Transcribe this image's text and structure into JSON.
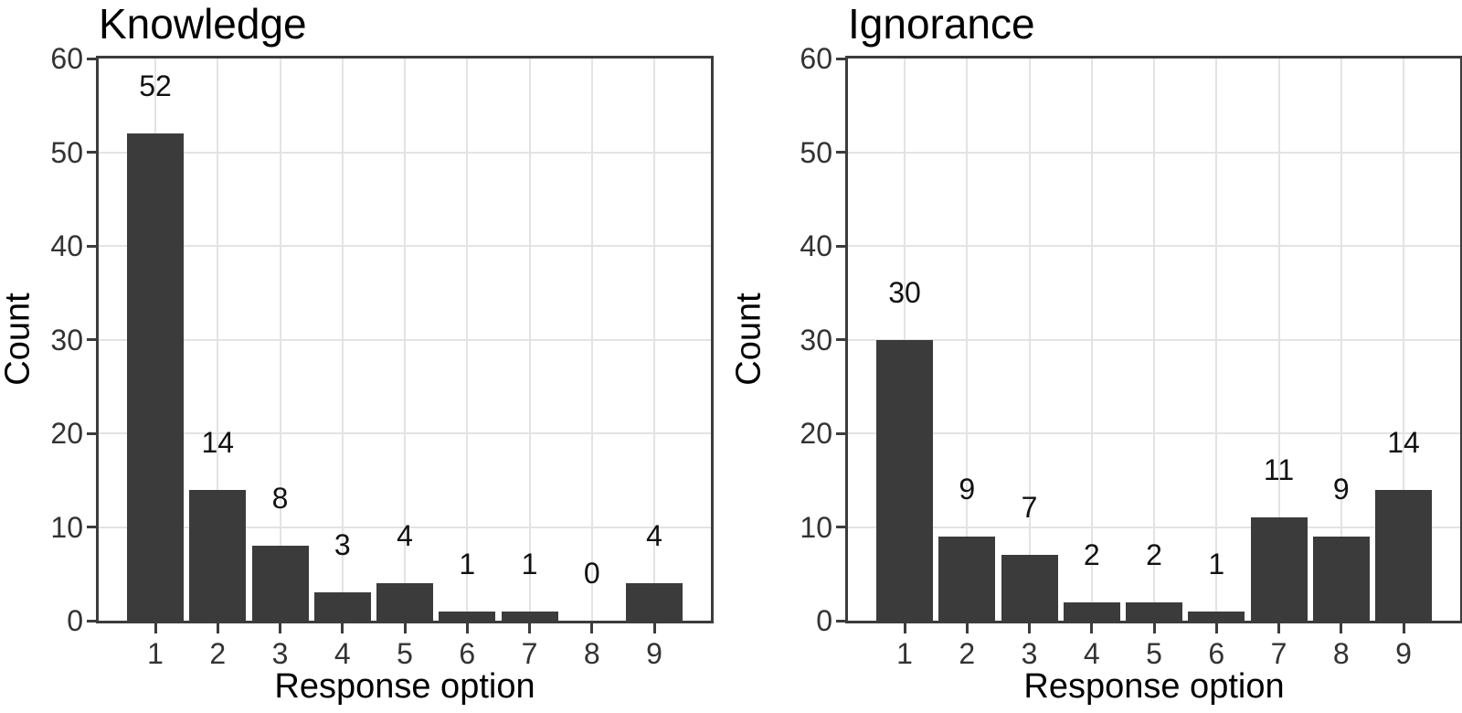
{
  "figure": {
    "background": "#ffffff",
    "panel_count": 2
  },
  "style": {
    "bar_color": "#3b3b3b",
    "panel_border_color": "#3c3c3c",
    "grid_color": "#e3e3e3",
    "tick_text_color": "#333333",
    "title_text_color": "#000000"
  },
  "chart_data": [
    {
      "type": "bar",
      "title": "Knowledge",
      "xlabel": "Response option",
      "ylabel": "Count",
      "categories": [
        "1",
        "2",
        "3",
        "4",
        "5",
        "6",
        "7",
        "8",
        "9"
      ],
      "values": [
        52,
        14,
        8,
        3,
        4,
        1,
        1,
        0,
        4
      ],
      "bar_labels": [
        "52",
        "14",
        "8",
        "3",
        "4",
        "1",
        "1",
        "0",
        "4"
      ],
      "ylim": [
        0,
        60
      ],
      "yticks": [
        0,
        10,
        20,
        30,
        40,
        50,
        60
      ],
      "grid": {
        "horizontal": "major lines at yticks",
        "vertical": "line at each category center"
      },
      "legend": "none"
    },
    {
      "type": "bar",
      "title": "Ignorance",
      "xlabel": "Response option",
      "ylabel": "Count",
      "categories": [
        "1",
        "2",
        "3",
        "4",
        "5",
        "6",
        "7",
        "8",
        "9"
      ],
      "values": [
        30,
        9,
        7,
        2,
        2,
        1,
        11,
        9,
        14
      ],
      "bar_labels": [
        "30",
        "9",
        "7",
        "2",
        "2",
        "1",
        "11",
        "9",
        "14"
      ],
      "ylim": [
        0,
        60
      ],
      "yticks": [
        0,
        10,
        20,
        30,
        40,
        50,
        60
      ],
      "grid": {
        "horizontal": "major lines at yticks",
        "vertical": "line at each category center"
      },
      "legend": "none"
    }
  ]
}
